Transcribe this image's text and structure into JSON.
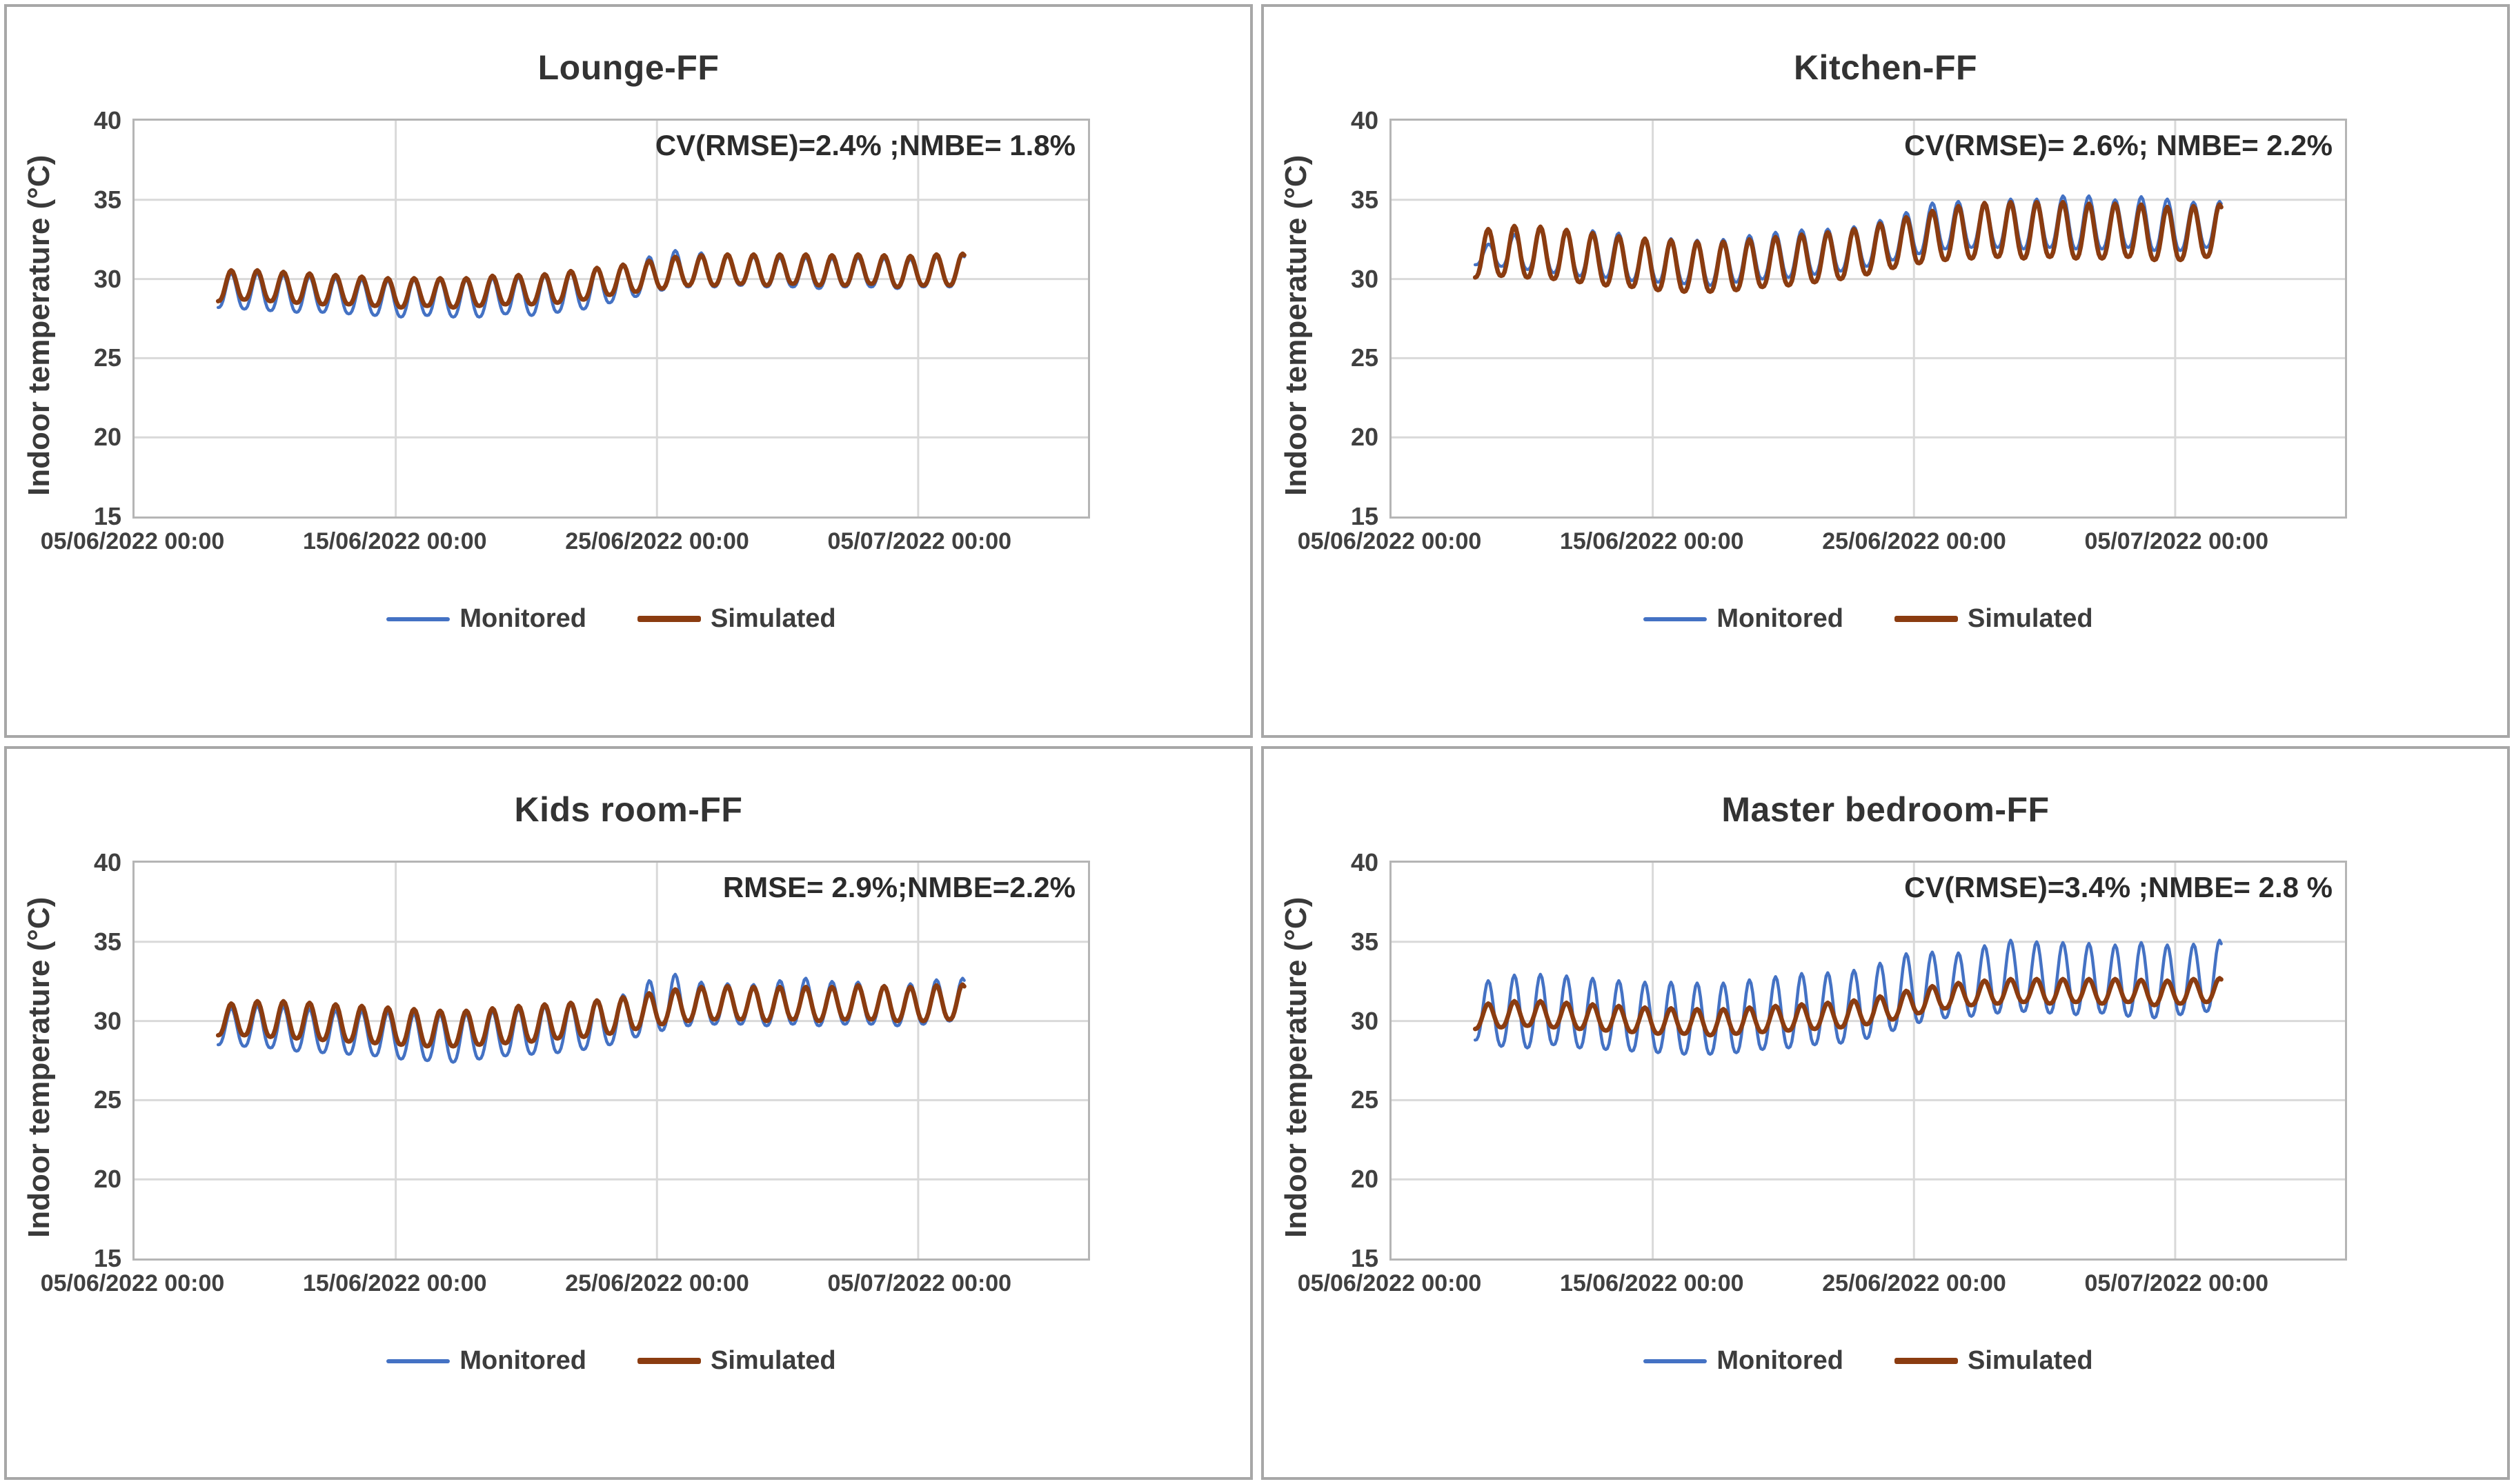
{
  "figure": {
    "background": "#ffffff",
    "panel_border_color": "#a7a7a7",
    "grid_color": "#d9d9d9",
    "plot_border_color": "#b5b5b5"
  },
  "chart_data": [
    {
      "type": "line",
      "title": "Lounge-FF",
      "annotation": "CV(RMSE)=2.4% ;NMBE= 1.8%",
      "ylabel": "Indoor temperature (°C)",
      "ylim": [
        15,
        40
      ],
      "yticks": [
        15,
        20,
        25,
        30,
        35,
        40
      ],
      "xtick_labels": [
        "05/06/2022 00:00",
        "15/06/2022 00:00",
        "25/06/2022 00:00",
        "05/07/2022 00:00"
      ],
      "xtick_days": [
        0,
        10,
        20,
        30
      ],
      "x_domain_days": [
        0,
        36.5
      ],
      "data_start_day": 3.2,
      "grid": true,
      "legend_position": "bottom",
      "series": [
        {
          "name": "Monitored",
          "color": "#4472C4",
          "line_width": 4.5,
          "swatch_height": 6,
          "daily_max": [
            30.3,
            30.4,
            30.3,
            30.2,
            30.1,
            30.0,
            29.9,
            29.9,
            30.0,
            29.9,
            30.0,
            30.1,
            30.1,
            30.3,
            30.5,
            30.8,
            31.1,
            31.7,
            31.9,
            31.4,
            31.5,
            31.3,
            31.4,
            31.3,
            31.3,
            31.4,
            31.2,
            31.3,
            31.5
          ],
          "daily_min": [
            28.2,
            28.1,
            28.0,
            27.9,
            27.9,
            27.8,
            27.7,
            27.6,
            27.7,
            27.6,
            27.6,
            27.8,
            27.7,
            27.9,
            28.1,
            28.5,
            28.9,
            29.3,
            29.5,
            29.5,
            29.6,
            29.5,
            29.5,
            29.4,
            29.5,
            29.5,
            29.4,
            29.5,
            29.5
          ]
        },
        {
          "name": "Simulated",
          "color": "#8B3C10",
          "line_width": 6.5,
          "swatch_height": 9,
          "daily_max": [
            30.5,
            30.6,
            30.5,
            30.4,
            30.3,
            30.2,
            30.1,
            30.0,
            30.1,
            30.0,
            30.1,
            30.3,
            30.2,
            30.4,
            30.6,
            30.8,
            31.0,
            31.3,
            31.5,
            31.5,
            31.6,
            31.5,
            31.6,
            31.5,
            31.5,
            31.6,
            31.4,
            31.5,
            31.6
          ],
          "daily_min": [
            28.6,
            28.7,
            28.6,
            28.5,
            28.4,
            28.4,
            28.3,
            28.2,
            28.3,
            28.2,
            28.3,
            28.4,
            28.4,
            28.5,
            28.7,
            29.0,
            29.2,
            29.4,
            29.6,
            29.6,
            29.7,
            29.6,
            29.7,
            29.6,
            29.6,
            29.7,
            29.5,
            29.6,
            29.6
          ]
        }
      ]
    },
    {
      "type": "line",
      "title": "Kitchen-FF",
      "annotation": "CV(RMSE)= 2.6%; NMBE= 2.2%",
      "ylabel": "Indoor temperature (°C)",
      "ylim": [
        15,
        40
      ],
      "yticks": [
        15,
        20,
        25,
        30,
        35,
        40
      ],
      "xtick_labels": [
        "05/06/2022 00:00",
        "15/06/2022 00:00",
        "25/06/2022 00:00",
        "05/07/2022 00:00"
      ],
      "xtick_days": [
        0,
        10,
        20,
        30
      ],
      "x_domain_days": [
        0,
        36.5
      ],
      "data_start_day": 3.2,
      "grid": true,
      "legend_position": "bottom",
      "series": [
        {
          "name": "Monitored",
          "color": "#4472C4",
          "line_width": 4.5,
          "swatch_height": 6,
          "daily_max": [
            31.8,
            32.6,
            33.0,
            33.2,
            32.8,
            33.3,
            32.5,
            32.6,
            32.5,
            32.4,
            32.6,
            32.9,
            33.0,
            33.2,
            33.1,
            33.5,
            33.9,
            34.5,
            35.1,
            34.7,
            34.9,
            35.2,
            34.9,
            35.6,
            34.9,
            35.1,
            35.3,
            34.8,
            34.9
          ],
          "daily_min": [
            30.9,
            30.8,
            30.6,
            30.4,
            30.2,
            30.1,
            29.9,
            29.8,
            29.7,
            29.6,
            29.8,
            30.0,
            30.1,
            30.3,
            30.5,
            30.8,
            31.2,
            31.6,
            31.9,
            32.0,
            32.0,
            31.9,
            32.0,
            31.9,
            31.9,
            32.0,
            31.8,
            31.8,
            32.0
          ]
        },
        {
          "name": "Simulated",
          "color": "#8B3C10",
          "line_width": 6.5,
          "swatch_height": 9,
          "daily_max": [
            33.0,
            33.3,
            33.4,
            33.2,
            33.0,
            32.8,
            32.6,
            32.5,
            32.4,
            32.3,
            32.4,
            32.6,
            32.7,
            32.9,
            33.0,
            33.3,
            33.7,
            34.1,
            34.5,
            34.7,
            34.9,
            34.8,
            34.9,
            34.8,
            34.7,
            34.8,
            34.6,
            34.5,
            34.7
          ],
          "daily_min": [
            30.1,
            30.2,
            30.1,
            30.0,
            29.8,
            29.6,
            29.5,
            29.3,
            29.2,
            29.2,
            29.3,
            29.5,
            29.6,
            29.8,
            30.0,
            30.3,
            30.7,
            31.0,
            31.2,
            31.3,
            31.4,
            31.3,
            31.4,
            31.3,
            31.3,
            31.4,
            31.2,
            31.2,
            31.4
          ]
        }
      ]
    },
    {
      "type": "line",
      "title": "Kids room-FF",
      "annotation": "RMSE= 2.9%;NMBE=2.2%",
      "ylabel": "Indoor temperature (°C)",
      "ylim": [
        15,
        40
      ],
      "yticks": [
        15,
        20,
        25,
        30,
        35,
        40
      ],
      "xtick_labels": [
        "05/06/2022 00:00",
        "15/06/2022 00:00",
        "25/06/2022 00:00",
        "05/07/2022 00:00"
      ],
      "xtick_days": [
        0,
        10,
        20,
        30
      ],
      "x_domain_days": [
        0,
        36.5
      ],
      "data_start_day": 3.2,
      "grid": true,
      "legend_position": "bottom",
      "series": [
        {
          "name": "Monitored",
          "color": "#4472C4",
          "line_width": 4.5,
          "swatch_height": 6,
          "daily_max": [
            30.7,
            30.9,
            31.0,
            30.8,
            30.7,
            30.6,
            30.6,
            30.5,
            30.4,
            30.4,
            30.5,
            30.7,
            30.8,
            31.0,
            31.1,
            31.4,
            31.9,
            33.2,
            32.7,
            32.2,
            32.5,
            32.1,
            33.0,
            32.4,
            32.6,
            32.3,
            32.2,
            32.5,
            32.7
          ],
          "daily_min": [
            28.5,
            28.4,
            28.3,
            28.1,
            28.0,
            27.9,
            27.8,
            27.6,
            27.5,
            27.4,
            27.6,
            27.8,
            27.9,
            28.0,
            28.2,
            28.5,
            29.0,
            29.4,
            29.7,
            29.8,
            29.8,
            29.7,
            29.8,
            29.7,
            29.8,
            29.8,
            29.7,
            29.8,
            30.0
          ]
        },
        {
          "name": "Simulated",
          "color": "#8B3C10",
          "line_width": 6.5,
          "swatch_height": 9,
          "daily_max": [
            31.0,
            31.2,
            31.3,
            31.2,
            31.1,
            31.0,
            30.9,
            30.8,
            30.7,
            30.6,
            30.7,
            30.9,
            31.0,
            31.1,
            31.2,
            31.4,
            31.6,
            31.9,
            32.1,
            32.2,
            32.2,
            32.1,
            32.2,
            32.1,
            32.2,
            32.3,
            32.1,
            32.2,
            32.3
          ],
          "daily_min": [
            29.1,
            29.1,
            29.0,
            28.9,
            28.8,
            28.7,
            28.6,
            28.5,
            28.4,
            28.4,
            28.5,
            28.6,
            28.7,
            28.9,
            29.0,
            29.2,
            29.5,
            29.8,
            30.0,
            30.1,
            30.1,
            30.0,
            30.1,
            30.0,
            30.1,
            30.1,
            30.0,
            30.0,
            30.1
          ]
        }
      ]
    },
    {
      "type": "line",
      "title": "Master bedroom-FF",
      "annotation": "CV(RMSE)=3.4% ;NMBE= 2.8 %",
      "ylabel": "Indoor temperature (°C)",
      "ylim": [
        15,
        40
      ],
      "yticks": [
        15,
        20,
        25,
        30,
        35,
        40
      ],
      "xtick_labels": [
        "05/06/2022 00:00",
        "15/06/2022 00:00",
        "25/06/2022 00:00",
        "05/07/2022 00:00"
      ],
      "xtick_days": [
        0,
        10,
        20,
        30
      ],
      "x_domain_days": [
        0,
        36.5
      ],
      "data_start_day": 3.2,
      "grid": true,
      "legend_position": "bottom",
      "series": [
        {
          "name": "Monitored",
          "color": "#4472C4",
          "line_width": 4.5,
          "swatch_height": 6,
          "daily_max": [
            32.3,
            32.8,
            33.0,
            32.9,
            32.8,
            32.6,
            32.5,
            32.4,
            32.5,
            32.3,
            32.5,
            32.7,
            32.9,
            33.1,
            33.0,
            33.4,
            33.9,
            34.6,
            34.1,
            34.5,
            35.0,
            35.2,
            34.8,
            35.1,
            34.7,
            34.9,
            35.0,
            34.6,
            35.1
          ],
          "daily_min": [
            28.8,
            28.4,
            28.3,
            28.5,
            28.3,
            28.2,
            28.1,
            28.0,
            27.9,
            27.9,
            28.0,
            28.2,
            28.3,
            28.5,
            28.6,
            28.9,
            29.4,
            29.9,
            30.2,
            30.3,
            30.5,
            30.6,
            30.5,
            30.4,
            30.5,
            30.3,
            30.2,
            30.4,
            30.6
          ]
        },
        {
          "name": "Simulated",
          "color": "#8B3C10",
          "line_width": 6.5,
          "swatch_height": 9,
          "daily_max": [
            31.0,
            31.2,
            31.3,
            31.2,
            31.1,
            31.0,
            30.9,
            30.8,
            30.8,
            30.7,
            30.8,
            30.9,
            31.0,
            31.1,
            31.2,
            31.4,
            31.7,
            32.1,
            32.3,
            32.5,
            32.6,
            32.7,
            32.6,
            32.7,
            32.6,
            32.7,
            32.5,
            32.6,
            32.7
          ],
          "daily_min": [
            29.5,
            29.6,
            29.7,
            29.6,
            29.5,
            29.4,
            29.3,
            29.2,
            29.2,
            29.1,
            29.2,
            29.3,
            29.4,
            29.5,
            29.6,
            29.8,
            30.1,
            30.5,
            30.8,
            31.0,
            31.1,
            31.2,
            31.1,
            31.2,
            31.1,
            31.2,
            31.0,
            31.1,
            31.2
          ]
        }
      ]
    }
  ]
}
